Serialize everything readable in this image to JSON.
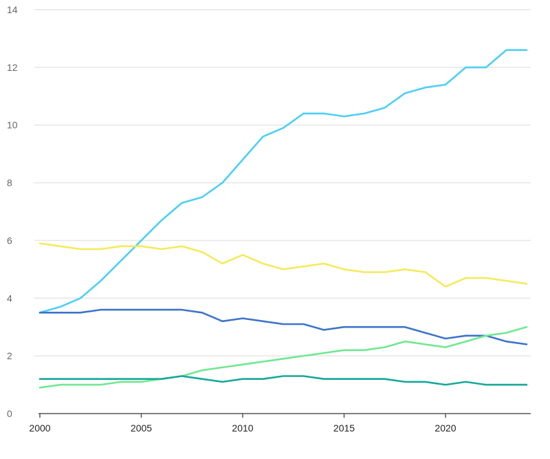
{
  "chart_data": {
    "type": "line",
    "title": "",
    "xlabel": "",
    "ylabel": "",
    "xlim": [
      2000,
      2024
    ],
    "ylim": [
      0,
      14
    ],
    "x_ticks": [
      "2000",
      "2005",
      "2010",
      "2015",
      "2020"
    ],
    "y_ticks": [
      "0",
      "2",
      "4",
      "6",
      "8",
      "10",
      "12",
      "14"
    ],
    "grid": "horizontal",
    "legend": "none",
    "x": [
      2000,
      2001,
      2002,
      2003,
      2004,
      2005,
      2006,
      2007,
      2008,
      2009,
      2010,
      2011,
      2012,
      2013,
      2014,
      2015,
      2016,
      2017,
      2018,
      2019,
      2020,
      2021,
      2022,
      2023,
      2024
    ],
    "series": [
      {
        "color": "#4dcff5",
        "values": [
          3.5,
          3.7,
          4.0,
          4.6,
          5.3,
          6.0,
          6.7,
          7.3,
          7.5,
          8.0,
          8.8,
          9.6,
          9.9,
          10.4,
          10.4,
          10.3,
          10.4,
          10.6,
          11.1,
          11.3,
          11.4,
          12.0,
          12.0,
          12.6,
          12.6
        ]
      },
      {
        "color": "#f5ea5a",
        "values": [
          5.9,
          5.8,
          5.7,
          5.7,
          5.8,
          5.8,
          5.7,
          5.8,
          5.6,
          5.2,
          5.5,
          5.2,
          5.0,
          5.1,
          5.2,
          5.0,
          4.9,
          4.9,
          5.0,
          4.9,
          4.4,
          4.7,
          4.7,
          4.6,
          4.5
        ]
      },
      {
        "color": "#3d74c9",
        "values": [
          3.5,
          3.5,
          3.5,
          3.6,
          3.6,
          3.6,
          3.6,
          3.6,
          3.5,
          3.2,
          3.3,
          3.2,
          3.1,
          3.1,
          2.9,
          3.0,
          3.0,
          3.0,
          3.0,
          2.8,
          2.6,
          2.7,
          2.7,
          2.5,
          2.4
        ]
      },
      {
        "color": "#6ee88f",
        "values": [
          0.9,
          1.0,
          1.0,
          1.0,
          1.1,
          1.1,
          1.2,
          1.3,
          1.5,
          1.6,
          1.7,
          1.8,
          1.9,
          2.0,
          2.1,
          2.2,
          2.2,
          2.3,
          2.5,
          2.4,
          2.3,
          2.5,
          2.7,
          2.8,
          3.0
        ]
      },
      {
        "color": "#16a89a",
        "values": [
          1.2,
          1.2,
          1.2,
          1.2,
          1.2,
          1.2,
          1.2,
          1.3,
          1.2,
          1.1,
          1.2,
          1.2,
          1.3,
          1.3,
          1.2,
          1.2,
          1.2,
          1.2,
          1.1,
          1.1,
          1.0,
          1.1,
          1.0,
          1.0,
          1.0
        ]
      }
    ],
    "gridline_color": "#e6e6e6",
    "axis_color": "#555555"
  }
}
